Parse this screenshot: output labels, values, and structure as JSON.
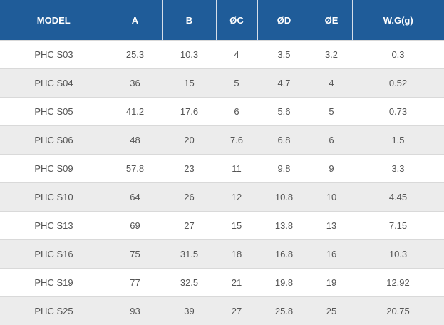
{
  "table": {
    "headers": [
      "MODEL",
      "A",
      "B",
      "ØC",
      "ØD",
      "ØE",
      "W.G(g)"
    ],
    "rows": [
      [
        "PHC S03",
        "25.3",
        "10.3",
        "4",
        "3.5",
        "3.2",
        "0.3"
      ],
      [
        "PHC S04",
        "36",
        "15",
        "5",
        "4.7",
        "4",
        "0.52"
      ],
      [
        "PHC S05",
        "41.2",
        "17.6",
        "6",
        "5.6",
        "5",
        "0.73"
      ],
      [
        "PHC S06",
        "48",
        "20",
        "7.6",
        "6.8",
        "6",
        "1.5"
      ],
      [
        "PHC S09",
        "57.8",
        "23",
        "11",
        "9.8",
        "9",
        "3.3"
      ],
      [
        "PHC S10",
        "64",
        "26",
        "12",
        "10.8",
        "10",
        "4.45"
      ],
      [
        "PHC S13",
        "69",
        "27",
        "15",
        "13.8",
        "13",
        "7.15"
      ],
      [
        "PHC S16",
        "75",
        "31.5",
        "18",
        "16.8",
        "16",
        "10.3"
      ],
      [
        "PHC S19",
        "77",
        "32.5",
        "21",
        "19.8",
        "19",
        "12.92"
      ],
      [
        "PHC S25",
        "93",
        "39",
        "27",
        "25.8",
        "25",
        "20.75"
      ]
    ]
  },
  "colors": {
    "header_background": "#1f5c99",
    "header_text": "#ffffff",
    "stripe_background": "#ececec",
    "body_text": "#555555"
  }
}
